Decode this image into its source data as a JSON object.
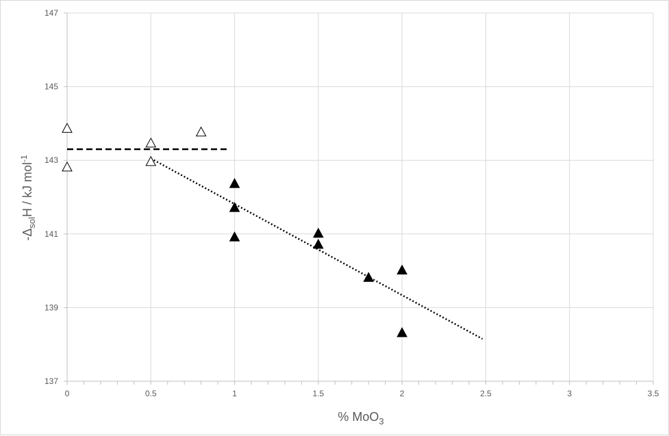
{
  "chart_data": {
    "type": "scatter",
    "xlabel": {
      "text": "% MoO",
      "sub": "3"
    },
    "ylabel": {
      "prefix": "-Δ",
      "sub": "sol",
      "mid": "H / kJ mol",
      "sup": "-1"
    },
    "xlim": [
      0,
      3.5
    ],
    "ylim": [
      137,
      147
    ],
    "x_ticks": [
      0,
      0.5,
      1,
      1.5,
      2,
      2.5,
      3,
      3.5
    ],
    "x_tick_labels": [
      "0",
      "0.5",
      "1",
      "1.5",
      "2",
      "2.5",
      "3",
      "3.5"
    ],
    "y_ticks": [
      137,
      139,
      141,
      143,
      145,
      147
    ],
    "y_tick_labels": [
      "137",
      "139",
      "141",
      "143",
      "145",
      "147"
    ],
    "grid": true,
    "minor_x_ticks": 0.1,
    "series": [
      {
        "marker": "triangle-open",
        "points": [
          {
            "x": 0,
            "y": 143.85
          },
          {
            "x": 0,
            "y": 142.8
          },
          {
            "x": 0.5,
            "y": 143.45
          },
          {
            "x": 0.5,
            "y": 142.95
          },
          {
            "x": 0.8,
            "y": 143.75
          }
        ]
      },
      {
        "marker": "triangle-filled",
        "points": [
          {
            "x": 1,
            "y": 142.35
          },
          {
            "x": 1,
            "y": 141.7
          },
          {
            "x": 1,
            "y": 140.9
          },
          {
            "x": 1.5,
            "y": 141.0
          },
          {
            "x": 1.5,
            "y": 140.7
          },
          {
            "x": 1.8,
            "y": 139.8
          },
          {
            "x": 2,
            "y": 140.0
          },
          {
            "x": 2,
            "y": 138.3
          }
        ]
      }
    ],
    "trendlines": [
      {
        "style": "dashed",
        "from": [
          0,
          143.3
        ],
        "to": [
          0.97,
          143.3
        ]
      },
      {
        "style": "dotted",
        "from": [
          0.5,
          143.05
        ],
        "to": [
          2.48,
          138.15
        ]
      }
    ],
    "colors": {
      "grid": "#d9d9d9",
      "axis": "#bfbfbf",
      "text": "#595959",
      "marker": "#000000"
    }
  }
}
